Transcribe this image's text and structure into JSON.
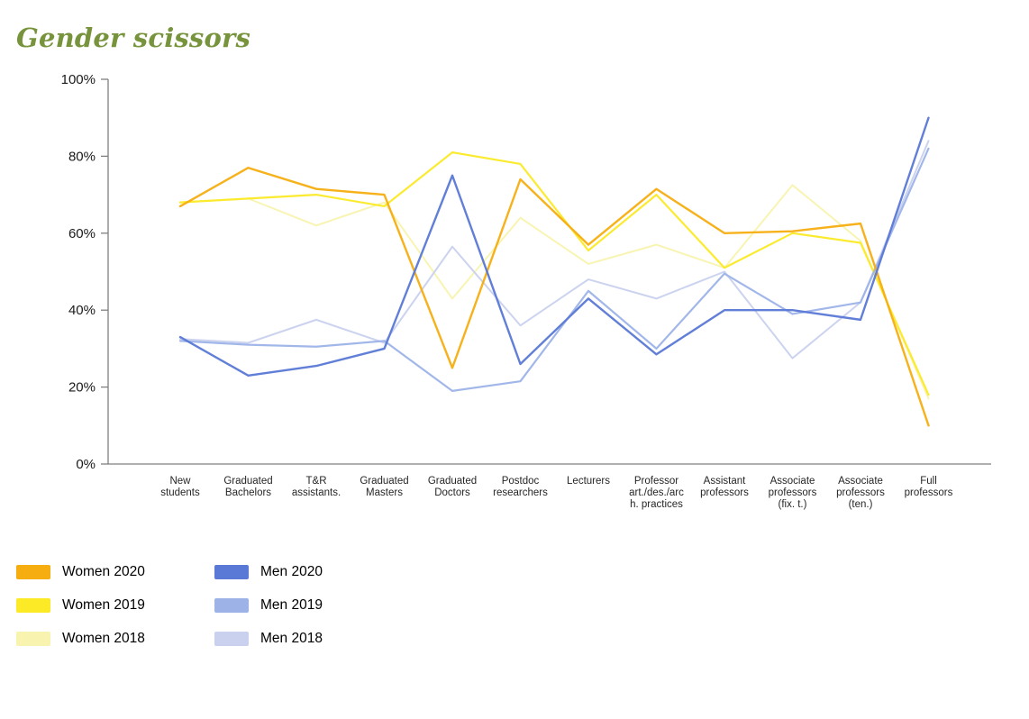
{
  "page": {
    "title": "Gender scissors",
    "title_color": "#77933C"
  },
  "chart_data": {
    "type": "line",
    "title": "Gender scissors",
    "categories": [
      "New students",
      "Graduated Bachelors",
      "T&R assistants.",
      "Graduated Masters",
      "Graduated Doctors",
      "Postdoc researchers",
      "Lecturers",
      "Professor art./des./arch. practices",
      "Assistant professors",
      "Associate professors (fix. t.)",
      "Associate professors (ten.)",
      "Full professors"
    ],
    "category_label_lines": [
      [
        "New",
        "students"
      ],
      [
        "Graduated",
        "Bachelors"
      ],
      [
        "T&R",
        "assistants."
      ],
      [
        "Graduated",
        "Masters"
      ],
      [
        "Graduated",
        "Doctors"
      ],
      [
        "Postdoc",
        "researchers"
      ],
      [
        "Lecturers"
      ],
      [
        "Professor",
        "art./des./arc",
        "h. practices"
      ],
      [
        "Assistant",
        "professors"
      ],
      [
        "Associate",
        "professors",
        "(fix. t.)"
      ],
      [
        "Associate",
        "professors",
        "(ten.)"
      ],
      [
        "Full",
        "professors"
      ]
    ],
    "y_ticks": [
      "0%",
      "20%",
      "40%",
      "60%",
      "80%",
      "100%"
    ],
    "ylim": [
      0,
      100
    ],
    "grid": false,
    "legend_position": "bottom-left",
    "axis_color": "#7f7f7f",
    "tick_label_color": "#1a1a1a",
    "series": [
      {
        "name": "Women 2020",
        "color": "#F6AD0F",
        "values": [
          67,
          77,
          71.5,
          70,
          25,
          74,
          57,
          71.5,
          60,
          60.5,
          62.5,
          10
        ]
      },
      {
        "name": "Women 2019",
        "color": "#FBEA25",
        "values": [
          68,
          69,
          70,
          67,
          81,
          78,
          55.5,
          70,
          51,
          60,
          57.5,
          18
        ]
      },
      {
        "name": "Women 2018",
        "color": "#F8F3AE",
        "values": [
          68,
          69,
          62,
          68,
          43,
          64,
          52,
          57,
          51,
          72.5,
          58,
          17
        ]
      },
      {
        "name": "Men 2020",
        "color": "#5A78D6",
        "values": [
          33,
          23,
          25.5,
          30,
          75,
          26,
          43,
          28.5,
          40,
          40,
          37.5,
          90
        ]
      },
      {
        "name": "Men 2019",
        "color": "#9DB3E8",
        "values": [
          32,
          31,
          30.5,
          32,
          19,
          21.5,
          45,
          30,
          49.5,
          39,
          42,
          82
        ]
      },
      {
        "name": "Men 2018",
        "color": "#C9D1EE",
        "values": [
          32.5,
          31.5,
          37.5,
          31.5,
          56.5,
          36,
          48,
          43,
          50,
          27.5,
          42,
          84
        ]
      }
    ]
  }
}
